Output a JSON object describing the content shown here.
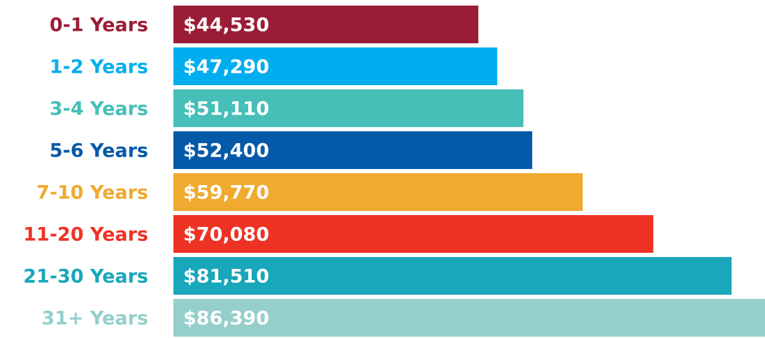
{
  "chart_data": {
    "type": "bar",
    "orientation": "horizontal",
    "categories": [
      "0-1 Years",
      "1-2 Years",
      "3-4 Years",
      "5-6 Years",
      "7-10 Years",
      "11-20 Years",
      "21-30 Years",
      "31+ Years"
    ],
    "values": [
      44530,
      47290,
      51110,
      52400,
      59770,
      70080,
      81510,
      86390
    ],
    "value_labels": [
      "$44,530",
      "$47,290",
      "$51,110",
      "$52,400",
      "$59,770",
      "$70,080",
      "$81,510",
      "$86,390"
    ],
    "colors": [
      "#9b1d35",
      "#00aeef",
      "#45bfb8",
      "#0459a8",
      "#efaa2f",
      "#ee3224",
      "#18a7bb",
      "#94cfcc"
    ]
  }
}
